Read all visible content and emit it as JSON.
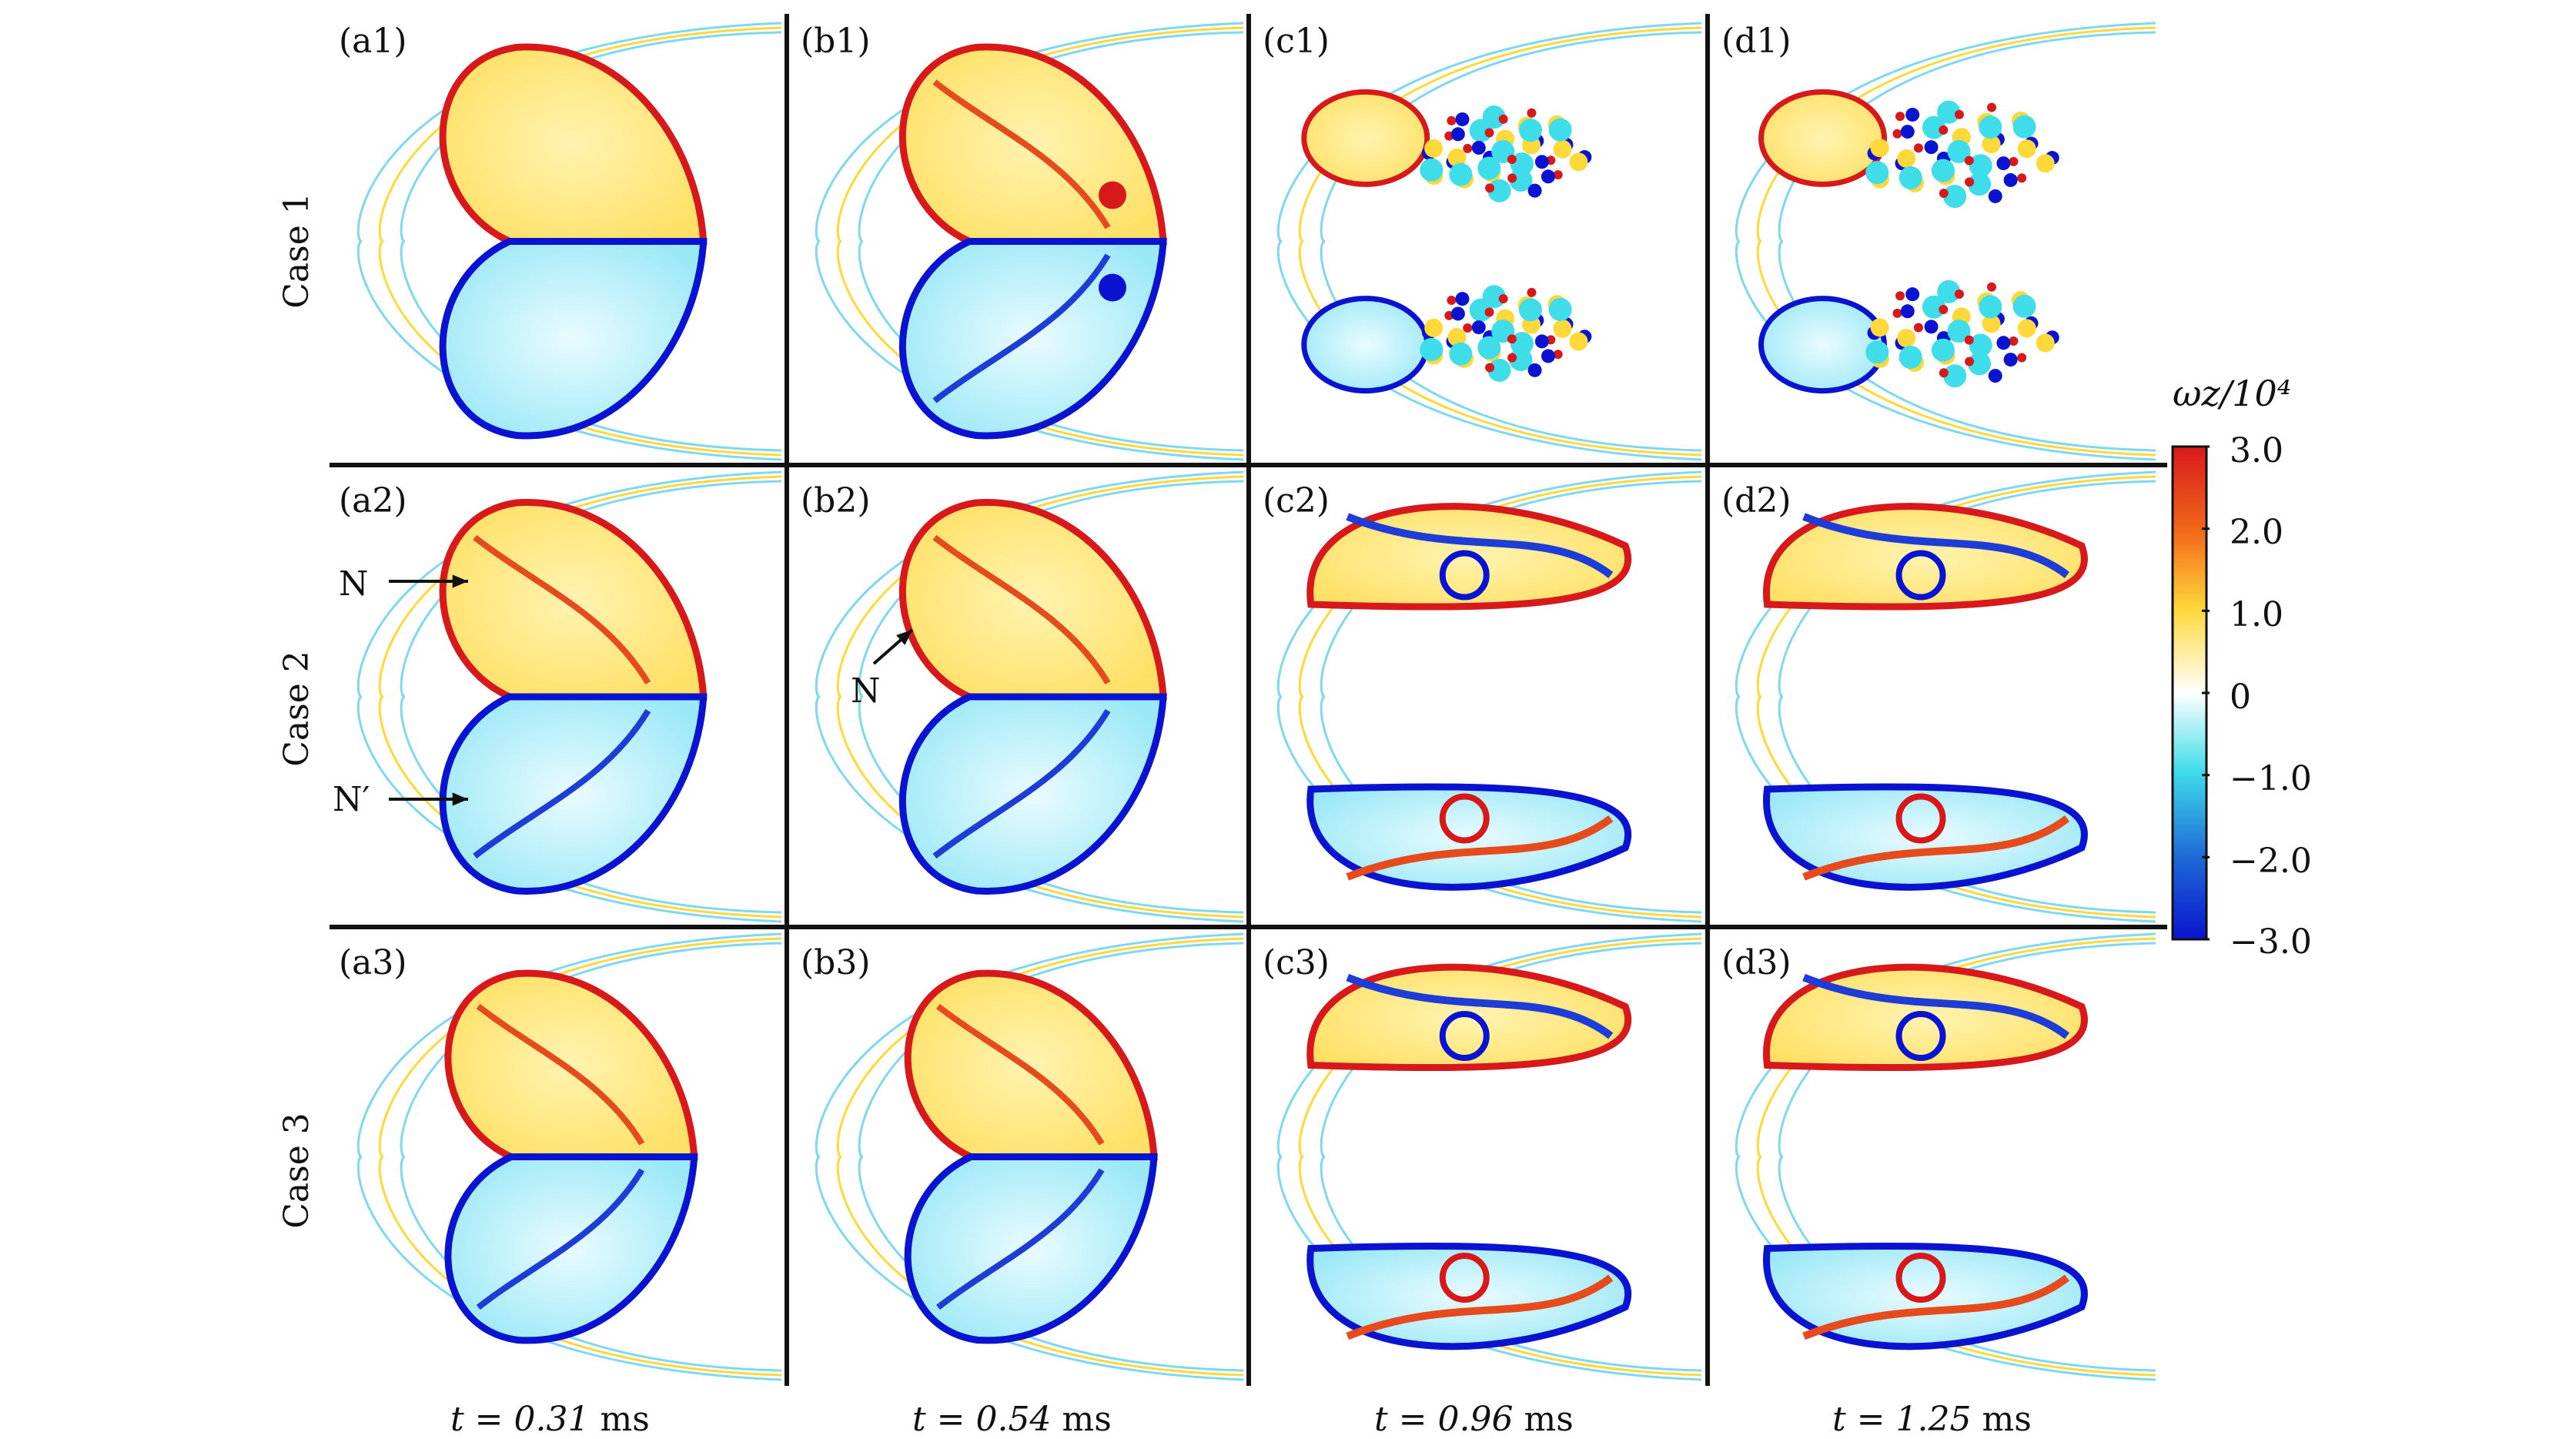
{
  "figure": {
    "panels": [
      {
        "id": "a1",
        "label": "(a1)"
      },
      {
        "id": "b1",
        "label": "(b1)"
      },
      {
        "id": "c1",
        "label": "(c1)"
      },
      {
        "id": "d1",
        "label": "(d1)"
      },
      {
        "id": "a2",
        "label": "(a2)"
      },
      {
        "id": "b2",
        "label": "(b2)"
      },
      {
        "id": "c2",
        "label": "(c2)"
      },
      {
        "id": "d2",
        "label": "(d2)"
      },
      {
        "id": "a3",
        "label": "(a3)"
      },
      {
        "id": "b3",
        "label": "(b3)"
      },
      {
        "id": "c3",
        "label": "(c3)"
      },
      {
        "id": "d3",
        "label": "(d3)"
      }
    ],
    "rows": [
      "Case 1",
      "Case 2",
      "Case 3"
    ],
    "times": [
      "t = 0.31",
      "t = 0.54",
      "t = 0.96",
      "t = 1.25"
    ],
    "time_unit": "ms",
    "annotations": {
      "a2_top": "N",
      "a2_bottom": "N′",
      "b2": "N"
    },
    "colorbar": {
      "title": "ωz/10⁴",
      "ticks": [
        "3.0",
        "2.0",
        "1.0",
        "0",
        "−1.0",
        "−2.0",
        "−3.0"
      ],
      "range": [
        -3.0,
        3.0
      ],
      "colors": [
        "#d7191c",
        "#f4a21b",
        "#ffe64d",
        "#ffffff",
        "#3fdcea",
        "#1e6bd6",
        "#0a14d0"
      ]
    }
  }
}
